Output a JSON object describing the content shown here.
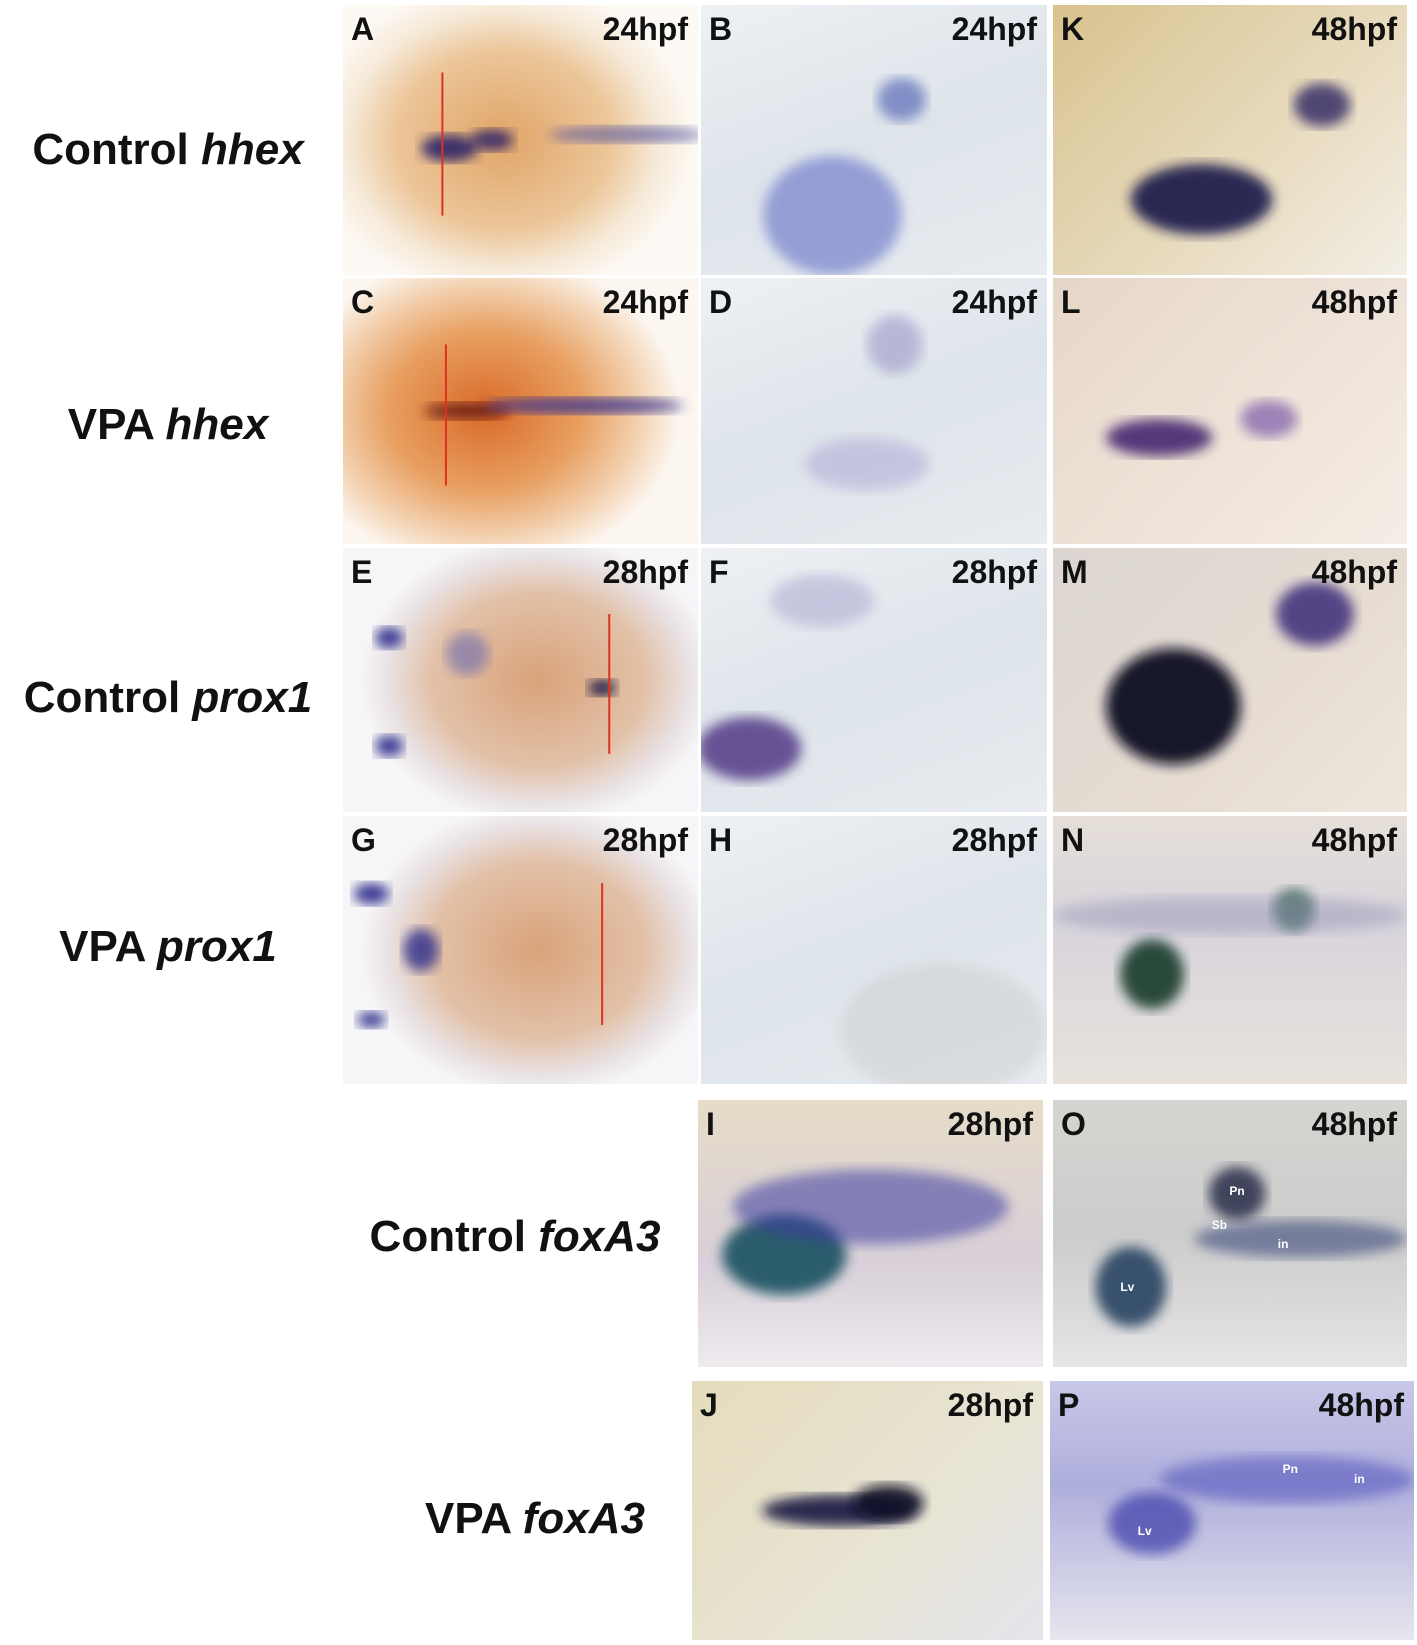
{
  "rows": [
    {
      "label": "Control",
      "gene": "hhex"
    },
    {
      "label": "VPA",
      "gene": "hhex"
    },
    {
      "label": "Control",
      "gene": "prox1"
    },
    {
      "label": "VPA",
      "gene": "prox1"
    },
    {
      "label": "Control",
      "gene": "foxA3"
    },
    {
      "label": "VPA",
      "gene": "foxA3"
    }
  ],
  "panels": [
    {
      "letter": "A",
      "stage": "24hpf"
    },
    {
      "letter": "B",
      "stage": "24hpf"
    },
    {
      "letter": "K",
      "stage": "48hpf"
    },
    {
      "letter": "C",
      "stage": "24hpf"
    },
    {
      "letter": "D",
      "stage": "24hpf"
    },
    {
      "letter": "L",
      "stage": "48hpf"
    },
    {
      "letter": "E",
      "stage": "28hpf"
    },
    {
      "letter": "F",
      "stage": "28hpf"
    },
    {
      "letter": "M",
      "stage": "48hpf"
    },
    {
      "letter": "G",
      "stage": "28hpf"
    },
    {
      "letter": "H",
      "stage": "28hpf"
    },
    {
      "letter": "N",
      "stage": "48hpf"
    },
    {
      "letter": "I",
      "stage": "28hpf"
    },
    {
      "letter": "O",
      "stage": "48hpf",
      "labels": [
        "Pn",
        "Sb",
        "in",
        "Lv"
      ]
    },
    {
      "letter": "J",
      "stage": "28hpf"
    },
    {
      "letter": "P",
      "stage": "48hpf",
      "labels": [
        "Pn",
        "in",
        "Lv"
      ]
    }
  ]
}
